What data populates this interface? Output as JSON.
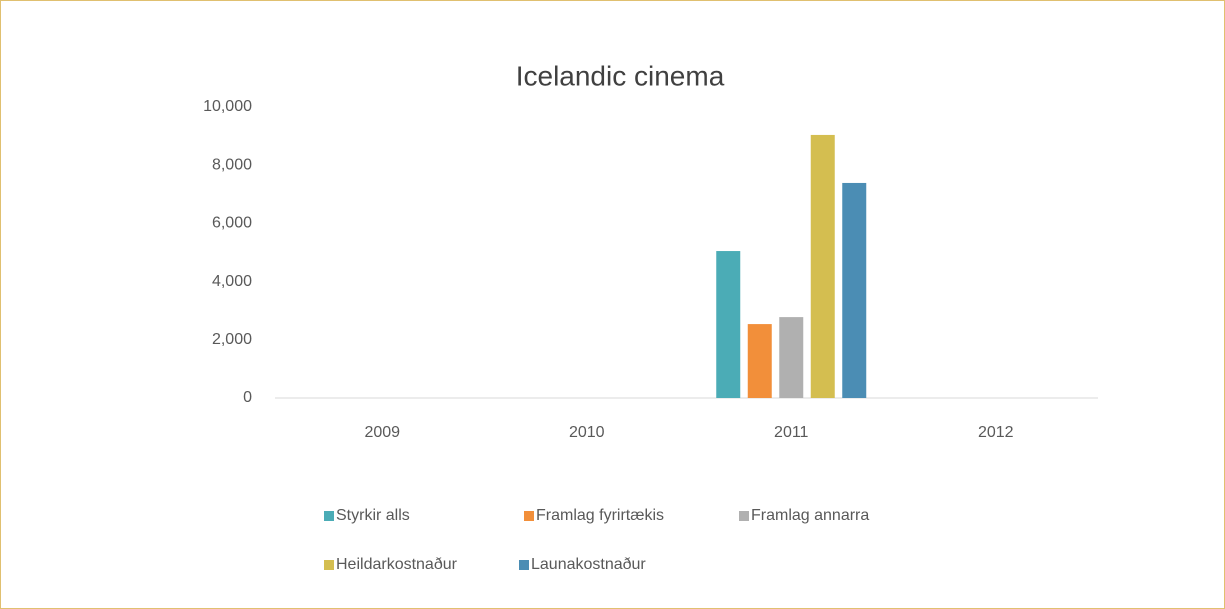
{
  "chart_data": {
    "type": "bar",
    "title": "Icelandic cinema",
    "categories": [
      "2009",
      "2010",
      "2011",
      "2012"
    ],
    "series": [
      {
        "name": "Styrkir alls",
        "color": "#4bacb6",
        "values": [
          null,
          null,
          5050,
          null
        ]
      },
      {
        "name": "Framlag fyrirtækis",
        "color": "#f28f3a",
        "values": [
          null,
          null,
          2540,
          null
        ]
      },
      {
        "name": "Framlag annarra",
        "color": "#b0b0b0",
        "values": [
          null,
          null,
          2780,
          null
        ]
      },
      {
        "name": "Heildarkostnaður",
        "color": "#d4be50",
        "values": [
          null,
          null,
          9040,
          null
        ]
      },
      {
        "name": "Launakostnaður",
        "color": "#4b8db4",
        "values": [
          null,
          null,
          7390,
          null
        ]
      }
    ],
    "ylim": [
      0,
      10000
    ],
    "yticks": [
      0,
      {
        "value": 2000,
        "label": "2,000"
      },
      {
        "value": 4000,
        "label": "4,000"
      },
      {
        "value": 6000,
        "label": "6,000"
      },
      {
        "value": 8000,
        "label": "8,000"
      },
      {
        "value": 10000,
        "label": "10,000"
      }
    ],
    "grid": false,
    "legend": "bottom"
  }
}
